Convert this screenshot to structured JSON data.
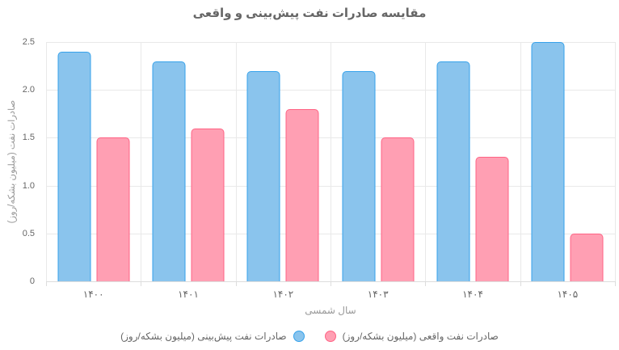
{
  "title": "مقایسه صادرات نفت پیش‌بینی و واقعی",
  "y_axis": {
    "title": "صادرات نفت (میلیون بشکه/روز)",
    "ticks": [
      "2.5",
      "2.0",
      "1.5",
      "1.0",
      "0.5",
      "0"
    ]
  },
  "x_axis": {
    "title": "سال شمسی",
    "ticks": [
      "۱۴۰۰",
      "۱۴۰۱",
      "۱۴۰۲",
      "۱۴۰۳",
      "۱۴۰۴",
      "۱۴۰۵"
    ]
  },
  "legend": {
    "entries": [
      {
        "label": "صادرات نفت پیش‌بینی (میلیون بشکه/روز)",
        "fill": "#8AC4ED",
        "border": "#36A2EB"
      },
      {
        "label": "صادرات نفت واقعی (میلیون بشکه/روز)",
        "fill": "#FF9FB3",
        "border": "#FF6384"
      }
    ]
  },
  "chart_data": {
    "type": "bar",
    "title": "مقایسه صادرات نفت پیش‌بینی و واقعی",
    "categories": [
      "۱۴۰۰",
      "۱۴۰۱",
      "۱۴۰۲",
      "۱۴۰۳",
      "۱۴۰۴",
      "۱۴۰۵"
    ],
    "series": [
      {
        "name": "صادرات نفت پیش‌بینی (میلیون بشکه/روز)",
        "values": [
          2.4,
          2.3,
          2.2,
          2.2,
          2.3,
          2.5
        ],
        "fill": "#8AC4ED",
        "border": "#36A2EB"
      },
      {
        "name": "صادرات نفت واقعی (میلیون بشکه/روز)",
        "values": [
          1.5,
          1.6,
          1.8,
          1.5,
          1.3,
          0.5
        ],
        "fill": "#FF9FB3",
        "border": "#FF6384"
      }
    ],
    "xlabel": "سال شمسی",
    "ylabel": "صادرات نفت (میلیون بشکه/روز)",
    "ylim": [
      0,
      2.5
    ],
    "ytick_step": 0.5,
    "grid": true,
    "legend_position": "bottom"
  },
  "colors": {
    "grid": "#E9E9E9",
    "axis_line": "#DDDDDD",
    "tick_text": "#666666",
    "axis_title_text": "#999999",
    "title_text": "#666666",
    "background": "#FFFFFF"
  }
}
